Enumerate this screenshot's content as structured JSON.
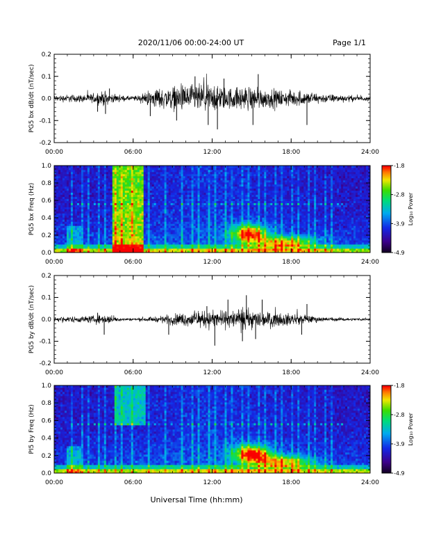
{
  "header": {
    "title": "2020/11/06  00:00-24:00 UT",
    "page": "Page 1/1"
  },
  "footer": {
    "xlabel": "Universal Time (hh:mm)"
  },
  "chart_data": [
    {
      "type": "line",
      "name": "bx-timeseries",
      "ylabel": "PG5 bx dB/dt (nT/sec)",
      "xlabel": "",
      "xlim": [
        0,
        24
      ],
      "ylim": [
        -0.2,
        0.2
      ],
      "xticks": [
        "00:00",
        "06:00",
        "12:00",
        "18:00",
        "24:00"
      ],
      "yticks": [
        "-0.2",
        "-0.1",
        "0.0",
        "0.1",
        "0.2"
      ],
      "envelope": [
        [
          0,
          0.02
        ],
        [
          1,
          0.025
        ],
        [
          2,
          0.025
        ],
        [
          3,
          0.03
        ],
        [
          3.8,
          0.045
        ],
        [
          4.5,
          0.025
        ],
        [
          5.5,
          0.015
        ],
        [
          6.5,
          0.02
        ],
        [
          7.5,
          0.06
        ],
        [
          8.5,
          0.07
        ],
        [
          9.5,
          0.08
        ],
        [
          10.5,
          0.09
        ],
        [
          11.5,
          0.09
        ],
        [
          12.5,
          0.08
        ],
        [
          13.5,
          0.07
        ],
        [
          14.5,
          0.08
        ],
        [
          15.5,
          0.07
        ],
        [
          16.5,
          0.06
        ],
        [
          17.5,
          0.05
        ],
        [
          18.5,
          0.05
        ],
        [
          19.5,
          0.04
        ],
        [
          20.5,
          0.03
        ],
        [
          21.5,
          0.025
        ],
        [
          22.5,
          0.02
        ],
        [
          24,
          0.015
        ]
      ],
      "spikes": [
        [
          3.3,
          -0.06
        ],
        [
          3.9,
          -0.07
        ],
        [
          4.2,
          0.045
        ],
        [
          7.3,
          -0.08
        ],
        [
          9.3,
          -0.1
        ],
        [
          10.7,
          0.1
        ],
        [
          11.7,
          -0.12
        ],
        [
          12.4,
          -0.14
        ],
        [
          12.9,
          0.09
        ],
        [
          15.1,
          -0.12
        ],
        [
          15.5,
          0.11
        ],
        [
          19.2,
          -0.12
        ]
      ]
    },
    {
      "type": "heatmap",
      "name": "bx-spectrogram",
      "ylabel": "PG5 bx Freq (Hz)",
      "xlabel": "",
      "xlim": [
        0,
        24
      ],
      "ylim": [
        0,
        1.0
      ],
      "xticks": [
        "00:00",
        "06:00",
        "12:00",
        "18:00",
        "24:00"
      ],
      "yticks": [
        "0.0",
        "0.2",
        "0.4",
        "0.6",
        "0.8",
        "1.0"
      ],
      "colorbar": {
        "label": "Log₁₀ Power",
        "range": [
          -4.9,
          -1.8
        ],
        "ticks": [
          "-1.8",
          "-2.8",
          "-3.9",
          "-4.9"
        ]
      },
      "bright_bands": [
        {
          "t0": 4.5,
          "t1": 6.8,
          "f0": 0.0,
          "f1": 1.0,
          "level": 0.55
        }
      ],
      "blobs": [
        {
          "t": 14.8,
          "f": 0.22,
          "dt": 1.3,
          "df": 0.1,
          "level": 0.7
        },
        {
          "t": 17.5,
          "f": 0.12,
          "dt": 2.3,
          "df": 0.07,
          "level": 0.55
        }
      ],
      "harmonic_line_hz": 0.56,
      "pulsation_period_hours": 0.42
    },
    {
      "type": "line",
      "name": "by-timeseries",
      "ylabel": "PG5 by dB/dt (nT/sec)",
      "xlabel": "",
      "xlim": [
        0,
        24
      ],
      "ylim": [
        -0.2,
        0.2
      ],
      "xticks": [
        "00:00",
        "06:00",
        "12:00",
        "18:00",
        "24:00"
      ],
      "yticks": [
        "-0.2",
        "-0.1",
        "0.0",
        "0.1",
        "0.2"
      ],
      "envelope": [
        [
          0,
          0.015
        ],
        [
          1,
          0.02
        ],
        [
          2,
          0.02
        ],
        [
          3,
          0.025
        ],
        [
          4,
          0.03
        ],
        [
          5,
          0.012
        ],
        [
          6,
          0.008
        ],
        [
          7,
          0.012
        ],
        [
          8,
          0.02
        ],
        [
          9,
          0.035
        ],
        [
          10,
          0.045
        ],
        [
          11,
          0.05
        ],
        [
          12,
          0.055
        ],
        [
          13,
          0.055
        ],
        [
          14,
          0.06
        ],
        [
          15,
          0.06
        ],
        [
          16,
          0.05
        ],
        [
          17,
          0.045
        ],
        [
          18,
          0.04
        ],
        [
          19,
          0.03
        ],
        [
          20,
          0.018
        ],
        [
          21,
          0.012
        ],
        [
          22,
          0.01
        ],
        [
          24,
          0.008
        ]
      ],
      "spikes": [
        [
          3.3,
          0.03
        ],
        [
          3.8,
          -0.07
        ],
        [
          8.7,
          -0.07
        ],
        [
          11.6,
          0.06
        ],
        [
          12.2,
          -0.12
        ],
        [
          13.2,
          0.09
        ],
        [
          14.3,
          -0.1
        ],
        [
          14.6,
          0.11
        ],
        [
          15.3,
          -0.09
        ],
        [
          15.8,
          0.09
        ],
        [
          18.8,
          -0.07
        ],
        [
          19.2,
          0.07
        ]
      ]
    },
    {
      "type": "heatmap",
      "name": "by-spectrogram",
      "ylabel": "PI5 by Freq (Hz)",
      "xlabel": "",
      "xlim": [
        0,
        24
      ],
      "ylim": [
        0,
        1.0
      ],
      "xticks": [
        "00:00",
        "06:00",
        "12:00",
        "18:00",
        "24:00"
      ],
      "yticks": [
        "0.0",
        "0.2",
        "0.4",
        "0.6",
        "0.8",
        "1.0"
      ],
      "colorbar": {
        "label": "Log₁₀ Power",
        "range": [
          -4.9,
          -1.8
        ],
        "ticks": [
          "-1.8",
          "-2.8",
          "-3.9",
          "-4.9"
        ]
      },
      "bright_bands": [
        {
          "t0": 4.6,
          "t1": 7.0,
          "f0": 0.55,
          "f1": 1.0,
          "level": 0.3
        }
      ],
      "blobs": [
        {
          "t": 15.0,
          "f": 0.22,
          "dt": 1.4,
          "df": 0.1,
          "level": 0.72
        },
        {
          "t": 17.4,
          "f": 0.13,
          "dt": 2.2,
          "df": 0.07,
          "level": 0.55
        }
      ],
      "harmonic_line_hz": 0.56,
      "pulsation_period_hours": 0.42
    }
  ]
}
